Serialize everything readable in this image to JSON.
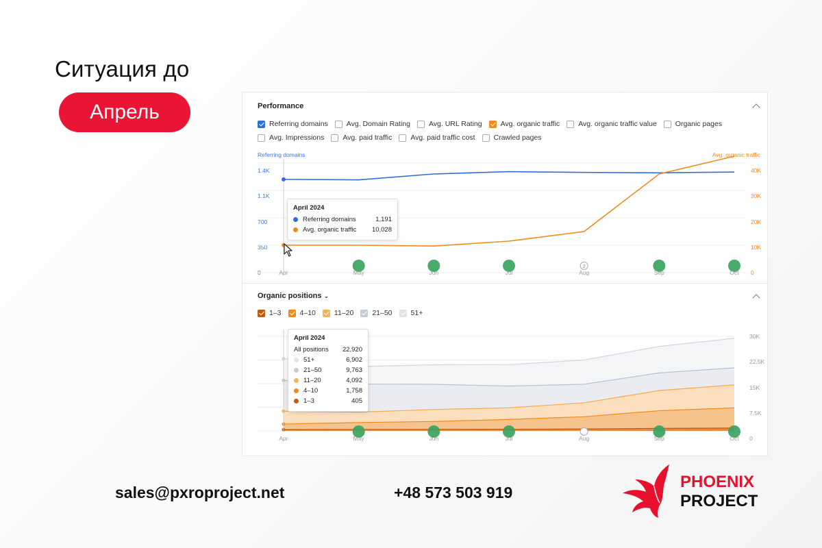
{
  "slide": {
    "heading": "Ситуация до",
    "pill": "Апрель"
  },
  "performance": {
    "title": "Performance",
    "checkboxes": [
      {
        "label": "Referring domains",
        "checked": true,
        "color": "#2f6fd6"
      },
      {
        "label": "Avg. Domain Rating",
        "checked": false
      },
      {
        "label": "Avg. URL Rating",
        "checked": false
      },
      {
        "label": "Avg. organic traffic",
        "checked": true,
        "color": "#f08a1c"
      },
      {
        "label": "Avg. organic traffic value",
        "checked": false
      },
      {
        "label": "Organic pages",
        "checked": false
      },
      {
        "label": "Avg. Impressions",
        "checked": false
      },
      {
        "label": "Avg. paid traffic",
        "checked": false
      },
      {
        "label": "Avg. paid traffic cost",
        "checked": false
      },
      {
        "label": "Crawled pages",
        "checked": false
      }
    ],
    "left_axis_title": "Referring domains",
    "right_axis_title": "Avg. organic traffic",
    "left_ticks": [
      "1.4K",
      "1.1K",
      "700",
      "350",
      "0"
    ],
    "right_ticks": [
      "40K",
      "30K",
      "20K",
      "10K",
      "0"
    ],
    "tooltip": {
      "title": "April 2024",
      "rows": [
        {
          "label": "Referring domains",
          "value": "1,191",
          "color": "#2f6fd6"
        },
        {
          "label": "Avg. organic traffic",
          "value": "10,028",
          "color": "#f08a1c"
        }
      ]
    },
    "update_marker": "2"
  },
  "positions": {
    "title": "Organic positions",
    "checkboxes": [
      {
        "label": "1–3",
        "checked": true,
        "color": "#c25a0a"
      },
      {
        "label": "4–10",
        "checked": true,
        "color": "#f08a1c"
      },
      {
        "label": "11–20",
        "checked": true,
        "color": "#f7b25c"
      },
      {
        "label": "21–50",
        "checked": true,
        "color": "#c5ccd8"
      },
      {
        "label": "51+",
        "checked": true,
        "color": "#dfe3ea"
      }
    ],
    "right_ticks": [
      "30K",
      "22.5K",
      "15K",
      "7.5K",
      "0"
    ],
    "tooltip": {
      "title": "April 2024",
      "total_label": "All positions",
      "total_value": "22,920",
      "rows": [
        {
          "label": "51+",
          "value": "6,902",
          "color": "#dfe3ea"
        },
        {
          "label": "21–50",
          "value": "9,763",
          "color": "#c5ccd8"
        },
        {
          "label": "11–20",
          "value": "4,092",
          "color": "#f7b25c"
        },
        {
          "label": "4–10",
          "value": "1,758",
          "color": "#f08a1c"
        },
        {
          "label": "1–3",
          "value": "405",
          "color": "#c25a0a"
        }
      ]
    }
  },
  "months": [
    "Apr",
    "May",
    "Jun",
    "Jul",
    "Aug",
    "Sep",
    "Oct"
  ],
  "chart_data": [
    {
      "type": "line",
      "title": "Performance",
      "x": [
        "Apr",
        "May",
        "Jun",
        "Jul",
        "Aug",
        "Sep",
        "Oct"
      ],
      "series": [
        {
          "name": "Referring domains",
          "axis": "left",
          "values": [
            1191,
            1185,
            1260,
            1290,
            1280,
            1275,
            1285
          ]
        },
        {
          "name": "Avg. organic traffic",
          "axis": "right",
          "values": [
            10028,
            10000,
            9700,
            11500,
            15000,
            36000,
            42500
          ]
        }
      ],
      "ylim_left": [
        0,
        1400
      ],
      "ylim_right": [
        0,
        40000
      ],
      "grid": true
    },
    {
      "type": "area",
      "title": "Organic positions",
      "x": [
        "Apr",
        "May",
        "Jun",
        "Jul",
        "Aug",
        "Sep",
        "Oct"
      ],
      "series": [
        {
          "name": "1–3",
          "values": [
            405,
            450,
            480,
            520,
            600,
            800,
            900
          ]
        },
        {
          "name": "4–10",
          "values": [
            1758,
            2200,
            2500,
            3100,
            3900,
            5600,
            6400
          ]
        },
        {
          "name": "11–20",
          "values": [
            4092,
            3300,
            3800,
            3700,
            4400,
            6400,
            7300
          ]
        },
        {
          "name": "21–50",
          "values": [
            9763,
            8900,
            8000,
            6900,
            5900,
            5600,
            5400
          ]
        },
        {
          "name": "51+",
          "values": [
            6902,
            5550,
            6200,
            6800,
            7700,
            8400,
            9400
          ]
        }
      ],
      "stacked": true,
      "ylim": [
        0,
        30000
      ],
      "grid": true
    }
  ],
  "footer": {
    "email": "sales@pxroproject.net",
    "phone": "+48 573 503 919",
    "logo_line1": "PHOENIX",
    "logo_line2": "PROJECT"
  }
}
